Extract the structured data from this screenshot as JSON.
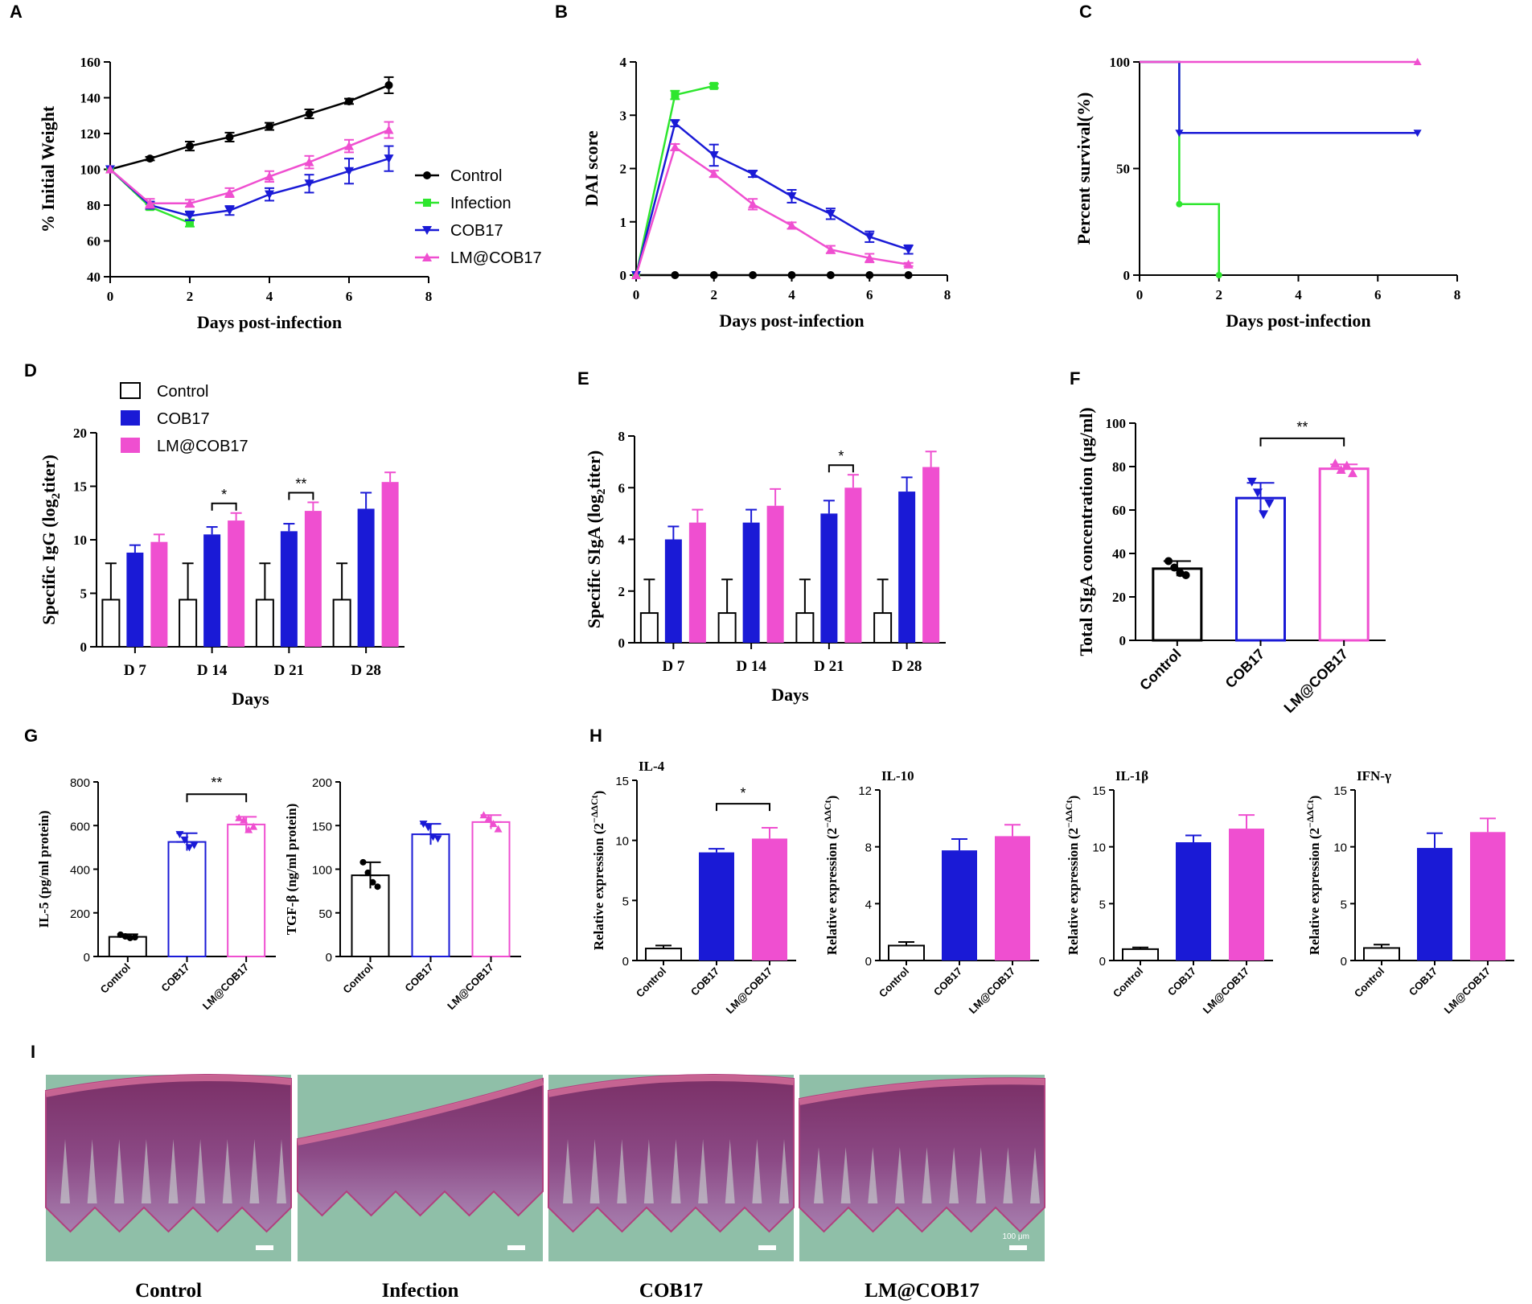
{
  "colors": {
    "control": "#000000",
    "infection": "#2ee62e",
    "cob17": "#1a1ad6",
    "lm": "#ef4fd0"
  },
  "chart_data": [
    {
      "panel": "A",
      "type": "line",
      "title": "",
      "xlabel": "Days post-infection",
      "ylabel": "% Initial Weight",
      "xlim": [
        0,
        8
      ],
      "ylim": [
        40,
        160
      ],
      "xticks": [
        0,
        2,
        4,
        6,
        8
      ],
      "yticks": [
        40,
        60,
        80,
        100,
        120,
        140,
        160
      ],
      "series": [
        {
          "name": "Control",
          "x": [
            0,
            1,
            2,
            3,
            4,
            5,
            6,
            7
          ],
          "values": [
            100,
            106,
            113,
            118,
            124,
            131,
            138,
            147
          ],
          "err": [
            0,
            1,
            2.5,
            2.5,
            2,
            2.5,
            1.5,
            4.5
          ]
        },
        {
          "name": "Infection",
          "x": [
            0,
            1,
            2
          ],
          "values": [
            100,
            79,
            70
          ],
          "err": [
            0,
            1.5,
            2
          ]
        },
        {
          "name": "COB17",
          "x": [
            0,
            1,
            2,
            3,
            4,
            5,
            6,
            7
          ],
          "values": [
            100,
            80,
            74,
            77,
            86,
            92,
            99,
            106
          ],
          "err": [
            0,
            2,
            2.5,
            2.5,
            3.5,
            5,
            7,
            7
          ]
        },
        {
          "name": "LM@COB17",
          "x": [
            0,
            1,
            2,
            3,
            4,
            5,
            6,
            7
          ],
          "values": [
            100,
            81,
            81,
            87,
            96,
            104,
            113,
            122
          ],
          "err": [
            0,
            2.5,
            2,
            2.5,
            3,
            3.5,
            3.5,
            4.5
          ]
        }
      ]
    },
    {
      "panel": "B",
      "type": "line",
      "title": "",
      "xlabel": "Days post-infection",
      "ylabel": "DAI score",
      "xlim": [
        0,
        8
      ],
      "ylim": [
        0,
        4
      ],
      "xticks": [
        0,
        2,
        4,
        6,
        8
      ],
      "yticks": [
        0,
        1,
        2,
        3,
        4
      ],
      "series": [
        {
          "name": "Control",
          "x": [
            0,
            1,
            2,
            3,
            4,
            5,
            6,
            7
          ],
          "values": [
            0,
            0,
            0,
            0,
            0,
            0,
            0,
            0
          ],
          "err": [
            0,
            0,
            0,
            0,
            0,
            0,
            0,
            0
          ]
        },
        {
          "name": "Infection",
          "x": [
            0,
            1,
            2
          ],
          "values": [
            0,
            3.38,
            3.55
          ],
          "err": [
            0,
            0.08,
            0.04
          ]
        },
        {
          "name": "COB17",
          "x": [
            0,
            1,
            2,
            3,
            4,
            5,
            6,
            7
          ],
          "values": [
            0,
            2.85,
            2.25,
            1.9,
            1.48,
            1.15,
            0.72,
            0.48
          ],
          "err": [
            0,
            0.06,
            0.2,
            0.06,
            0.12,
            0.1,
            0.1,
            0.08
          ]
        },
        {
          "name": "LM@COB17",
          "x": [
            0,
            1,
            2,
            3,
            4,
            5,
            6,
            7
          ],
          "values": [
            0,
            2.4,
            1.9,
            1.33,
            0.93,
            0.48,
            0.32,
            0.2
          ],
          "err": [
            0,
            0.06,
            0.06,
            0.1,
            0.06,
            0.07,
            0.08,
            0.03
          ]
        }
      ]
    },
    {
      "panel": "C",
      "type": "line",
      "title": "",
      "xlabel": "Days post-infection",
      "ylabel": "Percent survival(%)",
      "xlim": [
        0,
        8
      ],
      "ylim": [
        0,
        100
      ],
      "xticks": [
        0,
        2,
        4,
        6,
        8
      ],
      "yticks": [
        0,
        50,
        100
      ],
      "series": [
        {
          "name": "Infection",
          "x": [
            0,
            1,
            1,
            2,
            2
          ],
          "values": [
            100,
            100,
            33.3,
            33.3,
            0
          ]
        },
        {
          "name": "COB17",
          "x": [
            0,
            1,
            1,
            7
          ],
          "values": [
            100,
            100,
            66.7,
            66.7
          ]
        },
        {
          "name": "LM@COB17",
          "x": [
            0,
            7
          ],
          "values": [
            100,
            100
          ]
        }
      ]
    },
    {
      "panel": "D",
      "type": "bar",
      "title": "",
      "xlabel": "Days",
      "ylabel": "Specific IgG (log",
      "ylabel_sub": "2",
      "ylabel_end": "titer)",
      "ylim": [
        0,
        20
      ],
      "yticks": [
        0,
        5,
        10,
        15,
        20
      ],
      "categories": [
        "D 7",
        "D 14",
        "D 21",
        "D 28"
      ],
      "series": [
        {
          "name": "Control",
          "values": [
            4.4,
            4.4,
            4.4,
            4.4
          ],
          "err": [
            3.4,
            3.4,
            3.4,
            3.4
          ]
        },
        {
          "name": "COB17",
          "values": [
            8.8,
            10.5,
            10.8,
            12.9
          ],
          "err": [
            0.7,
            0.7,
            0.7,
            1.5
          ]
        },
        {
          "name": "LM@COB17",
          "values": [
            9.8,
            11.8,
            12.7,
            15.4
          ],
          "err": [
            0.7,
            0.7,
            0.8,
            0.9
          ]
        }
      ],
      "annotations": [
        {
          "category": "D 14",
          "text": "*"
        },
        {
          "category": "D 21",
          "text": "**"
        }
      ]
    },
    {
      "panel": "E",
      "type": "bar",
      "title": "",
      "xlabel": "Days",
      "ylabel": "Specific SIgA (log",
      "ylabel_sub": "2",
      "ylabel_end": "titer)",
      "ylim": [
        0,
        8
      ],
      "yticks": [
        0,
        2,
        4,
        6,
        8
      ],
      "categories": [
        "D 7",
        "D 14",
        "D 21",
        "D 28"
      ],
      "series": [
        {
          "name": "Control",
          "values": [
            1.15,
            1.15,
            1.15,
            1.15
          ],
          "err": [
            1.3,
            1.3,
            1.3,
            1.3
          ]
        },
        {
          "name": "COB17",
          "values": [
            4.0,
            4.65,
            5.0,
            5.85
          ],
          "err": [
            0.5,
            0.5,
            0.5,
            0.55
          ]
        },
        {
          "name": "LM@COB17",
          "values": [
            4.65,
            5.3,
            6.0,
            6.8
          ],
          "err": [
            0.5,
            0.65,
            0.5,
            0.6
          ]
        }
      ],
      "annotations": [
        {
          "category": "D 21",
          "text": "*"
        }
      ]
    },
    {
      "panel": "F",
      "type": "bar",
      "title": "",
      "xlabel": "",
      "ylabel": "Total SIgA concentration (μg/ml)",
      "ylim": [
        0,
        100
      ],
      "yticks": [
        0,
        20,
        40,
        60,
        80,
        100
      ],
      "categories": [
        "Control",
        "COB17",
        "LM@COB17"
      ],
      "values": [
        33,
        65.5,
        79
      ],
      "err": [
        3.5,
        7,
        2
      ],
      "points": [
        [
          36.5,
          33.5,
          31,
          30
        ],
        [
          73,
          68,
          58,
          63
        ],
        [
          81.5,
          78.5,
          80.5,
          77
        ]
      ],
      "annotations": [
        {
          "from": "COB17",
          "to": "LM@COB17",
          "text": "**"
        }
      ]
    },
    {
      "panel": "G-left",
      "type": "bar",
      "title": "",
      "xlabel": "",
      "ylabel": "IL-5 (pg/ml protein)",
      "ylim": [
        0,
        800
      ],
      "yticks": [
        0,
        200,
        400,
        600,
        800
      ],
      "categories": [
        "Control",
        "COB17",
        "LM@COB17"
      ],
      "values": [
        90,
        525,
        605
      ],
      "err": [
        12,
        40,
        35
      ],
      "points": [
        [
          100,
          92,
          85,
          88
        ],
        [
          560,
          535,
          500,
          510
        ],
        [
          635,
          625,
          580,
          595
        ]
      ],
      "annotations": [
        {
          "from": "COB17",
          "to": "LM@COB17",
          "text": "**"
        }
      ]
    },
    {
      "panel": "G-right",
      "type": "bar",
      "title": "",
      "xlabel": "",
      "ylabel": "TGF-β (ng/ml protein)",
      "ylim": [
        0,
        200
      ],
      "yticks": [
        0,
        50,
        100,
        150,
        200
      ],
      "categories": [
        "Control",
        "COB17",
        "LM@COB17"
      ],
      "values": [
        93,
        140,
        154
      ],
      "err": [
        15,
        12,
        8
      ],
      "points": [
        [
          108,
          96,
          85,
          80
        ],
        [
          152,
          148,
          137,
          135
        ],
        [
          162,
          158,
          152,
          146
        ]
      ]
    },
    {
      "panel": "H-1",
      "type": "bar",
      "title": "IL-4",
      "xlabel": "",
      "ylabel": "Relative expression (2",
      "ylabel_sup": "−ΔΔCt",
      "ylabel_end": ")",
      "ylim": [
        0,
        15
      ],
      "yticks": [
        0,
        5,
        10,
        15
      ],
      "categories": [
        "Control",
        "COB17",
        "LM@COB17"
      ],
      "values": [
        1.0,
        9.0,
        10.15
      ],
      "err": [
        0.25,
        0.3,
        0.9
      ],
      "annotations": [
        {
          "from": "COB17",
          "to": "LM@COB17",
          "text": "*"
        }
      ]
    },
    {
      "panel": "H-2",
      "type": "bar",
      "title": "IL-10",
      "xlabel": "",
      "ylabel": "Relative expression (2",
      "ylabel_sup": "−ΔΔCt",
      "ylabel_end": ")",
      "ylim": [
        0,
        12
      ],
      "yticks": [
        0,
        4,
        8,
        12
      ],
      "categories": [
        "Control",
        "COB17",
        "LM@COB17"
      ],
      "values": [
        1.05,
        7.75,
        8.75
      ],
      "err": [
        0.25,
        0.8,
        0.8
      ]
    },
    {
      "panel": "H-3",
      "type": "bar",
      "title": "IL-1β",
      "xlabel": "",
      "ylabel": "Relative expression (2",
      "ylabel_sup": "−ΔΔCt",
      "ylabel_end": ")",
      "ylim": [
        0,
        15
      ],
      "yticks": [
        0,
        5,
        10,
        15
      ],
      "categories": [
        "Control",
        "COB17",
        "LM@COB17"
      ],
      "values": [
        1.0,
        10.4,
        11.6
      ],
      "err": [
        0.15,
        0.6,
        1.2
      ]
    },
    {
      "panel": "H-4",
      "type": "bar",
      "title": "IFN-γ",
      "xlabel": "",
      "ylabel": "Relative expression (2",
      "ylabel_sup": "−ΔΔCt",
      "ylabel_end": ")",
      "ylim": [
        0,
        15
      ],
      "yticks": [
        0,
        5,
        10,
        15
      ],
      "categories": [
        "Control",
        "COB17",
        "LM@COB17"
      ],
      "values": [
        1.1,
        9.9,
        11.3
      ],
      "err": [
        0.3,
        1.3,
        1.2
      ]
    }
  ],
  "panel_labels": [
    "A",
    "B",
    "C",
    "D",
    "E",
    "F",
    "G",
    "H",
    "I"
  ],
  "legend_A": [
    "Control",
    "Infection",
    "COB17",
    "LM@COB17"
  ],
  "legend_D": [
    "Control",
    "COB17",
    "LM@COB17"
  ],
  "histology": {
    "captions": [
      "Control",
      "Infection",
      "COB17",
      "LM@COB17"
    ],
    "scale_bar": "100 μm"
  }
}
